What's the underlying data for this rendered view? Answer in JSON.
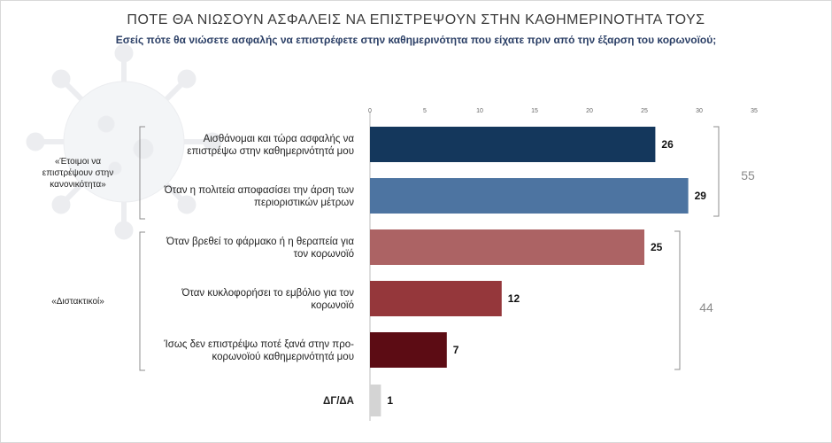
{
  "title": "ΠΟΤΕ ΘΑ ΝΙΩΣΟΥΝ ΑΣΦΑΛΕΙΣ ΝΑ ΕΠΙΣΤΡΕΨΟΥΝ ΣΤΗΝ ΚΑΘΗΜΕΡΙΝΟΤΗΤΑ ΤΟΥΣ",
  "subtitle": "Εσείς πότε θα νιώσετε ασφαλής να επιστρέφετε στην καθημερινότητα που είχατε πριν από την έξαρση του κορωνοϊού;",
  "chart_data": {
    "type": "bar",
    "orientation": "horizontal",
    "xlim": [
      0,
      35
    ],
    "xticks": [
      0,
      5,
      10,
      15,
      20,
      25,
      30,
      35
    ],
    "grid": false,
    "categories": [
      [
        "Αισθάνομαι και τώρα ασφαλής να",
        "επιστρέψω στην καθημερινότητά μου"
      ],
      [
        "Όταν η πολιτεία αποφασίσει την άρση των",
        "περιοριστικών μέτρων"
      ],
      [
        "Όταν βρεθεί το φάρμακο ή η θεραπεία για",
        "τον κορωνοϊό"
      ],
      [
        "Όταν κυκλοφορήσει το εμβόλιο για τον",
        "κορωνοϊό"
      ],
      [
        "Ίσως δεν επιστρέψω ποτέ ξανά στην προ-",
        "κορωνοϊού καθημερινότητά μου"
      ],
      [
        "ΔΓ/ΔΑ"
      ]
    ],
    "values": [
      26,
      29,
      25,
      12,
      7,
      1
    ],
    "colors": [
      "#14375c",
      "#4d74a1",
      "#ac6364",
      "#95373b",
      "#5c0c14",
      "#d4d4d4"
    ],
    "groups": [
      {
        "label": [
          "«Έτοιμοι να",
          "επιστρέψουν στην",
          "κανονικότητα»"
        ],
        "total": "55",
        "start": 0,
        "end": 1
      },
      {
        "label": [
          "«Διστακτικοί»"
        ],
        "total": "44",
        "start": 2,
        "end": 4
      }
    ]
  }
}
